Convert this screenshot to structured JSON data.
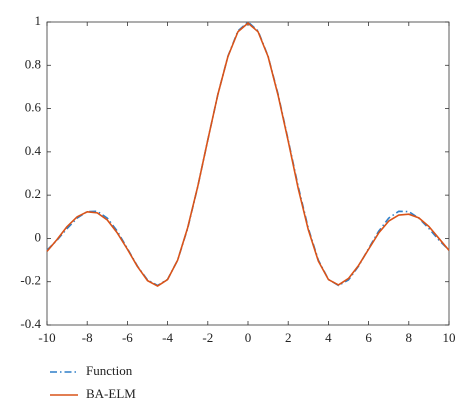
{
  "chart_data": {
    "type": "line",
    "x": [
      -10,
      -9.5,
      -9,
      -8.5,
      -8,
      -7.5,
      -7,
      -6.5,
      -6,
      -5.5,
      -5,
      -4.5,
      -4,
      -3.5,
      -3,
      -2.5,
      -2,
      -1.5,
      -1,
      -0.5,
      0,
      0.5,
      1,
      1.5,
      2,
      2.5,
      3,
      3.5,
      4,
      4.5,
      5,
      5.5,
      6,
      6.5,
      7,
      7.5,
      8,
      8.5,
      9,
      9.5,
      10
    ],
    "series": [
      {
        "name": "Function",
        "color": "#2f7fc8",
        "dash": "dashdot",
        "values": [
          -0.0544,
          -0.0079,
          0.0458,
          0.0939,
          0.1237,
          0.1253,
          0.0939,
          0.0331,
          -0.0466,
          -0.1283,
          -0.1918,
          -0.2172,
          -0.1892,
          -0.1002,
          0.047,
          0.2394,
          0.4546,
          0.665,
          0.8415,
          0.9589,
          1,
          0.9589,
          0.8415,
          0.665,
          0.4546,
          0.2394,
          0.047,
          -0.1002,
          -0.1892,
          -0.2172,
          -0.1918,
          -0.1283,
          -0.0466,
          0.0331,
          0.0939,
          0.1253,
          0.1237,
          0.0939,
          0.0458,
          -0.0079,
          -0.0544
        ]
      },
      {
        "name": "BA-ELM",
        "color": "#d95319",
        "dash": "solid",
        "values": [
          -0.06,
          -0.005,
          0.055,
          0.1,
          0.123,
          0.118,
          0.085,
          0.025,
          -0.05,
          -0.13,
          -0.195,
          -0.22,
          -0.19,
          -0.1,
          0.05,
          0.24,
          0.455,
          0.665,
          0.84,
          0.955,
          0.995,
          0.955,
          0.84,
          0.66,
          0.45,
          0.23,
          0.04,
          -0.105,
          -0.19,
          -0.215,
          -0.185,
          -0.125,
          -0.05,
          0.025,
          0.08,
          0.108,
          0.112,
          0.095,
          0.055,
          0,
          -0.055
        ]
      }
    ],
    "xlim": [
      -10,
      10
    ],
    "xticks": [
      -10,
      -8,
      -6,
      -4,
      -2,
      0,
      2,
      4,
      6,
      8,
      10
    ],
    "ylim": [
      -0.4,
      1
    ],
    "yticks": [
      -0.4,
      -0.2,
      0,
      0.2,
      0.4,
      0.6,
      0.8,
      1
    ],
    "legend": "bottom-left"
  }
}
